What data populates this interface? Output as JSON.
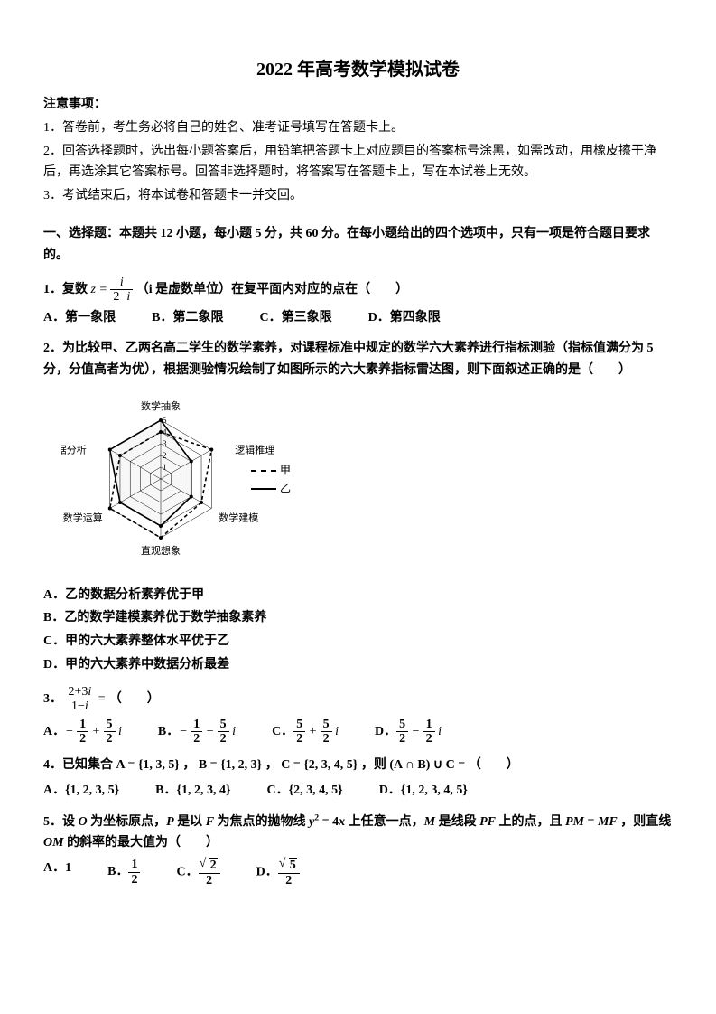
{
  "title": "2022 年高考数学模拟试卷",
  "instructions": {
    "head": "注意事项：",
    "items": [
      "1．答卷前，考生务必将自己的姓名、准考证号填写在答题卡上。",
      "2．回答选择题时，选出每小题答案后，用铅笔把答题卡上对应题目的答案标号涂黑，如需改动，用橡皮擦干净后，再选涂其它答案标号。回答非选择题时，将答案写在答题卡上，写在本试卷上无效。",
      "3．考试结束后，将本试卷和答题卡一并交回。"
    ]
  },
  "section1": "一、选择题：本题共 12 小题，每小题 5 分，共 60 分。在每小题给出的四个选项中，只有一项是符合题目要求的。",
  "q1": {
    "stem_pre": "1．复数 ",
    "stem_post": "（i 是虚数单位）在复平面内对应的点在（　　）",
    "A": "A．第一象限",
    "B": "B．第二象限",
    "C": "C．第三象限",
    "D": "D．第四象限"
  },
  "q2": {
    "stem": "2．为比较甲、乙两名高二学生的数学素养，对课程标准中规定的数学六大素养进行指标测验（指标值满分为 5 分，分值高者为优），根据测验情况绘制了如图所示的六大素养指标雷达图，则下面叙述正确的是（　　）",
    "A": "A．乙的数据分析素养优于甲",
    "B": "B．乙的数学建模素养优于数学抽象素养",
    "C": "C．甲的六大素养整体水平优于乙",
    "D": "D．甲的六大素养中数据分析最差",
    "radar": {
      "axes": [
        "数学抽象",
        "逻辑推理",
        "数学建模",
        "直观想象",
        "数学运算",
        "数据分析"
      ],
      "rings": [
        1,
        2,
        3,
        4,
        5
      ],
      "series": [
        {
          "name": "甲",
          "dash": true,
          "values": [
            4,
            5,
            4,
            5,
            5,
            4
          ]
        },
        {
          "name": "乙",
          "dash": false,
          "values": [
            5,
            3,
            3,
            4,
            4,
            5
          ]
        }
      ],
      "colors": {
        "line": "#000000",
        "grid": "#000000",
        "bg": "#ffffff"
      }
    }
  },
  "q3": {
    "stem_pre": "3．",
    "stem_post": "（　　）"
  },
  "q4": {
    "stem": "4．已知集合 A = {1, 3, 5} ， B = {1, 2, 3} ， C = {2, 3, 4, 5} ，则 (A ∩ B) ∪ C = （　　）",
    "A": "A．{1, 2, 3, 5}",
    "B": "B．{1, 2, 3, 4}",
    "C": "C．{2, 3, 4, 5}",
    "D": "D．{1, 2, 3, 4, 5}"
  },
  "q5": {
    "stem": "5．设 O 为坐标原点，P 是以 F 为焦点的抛物线 y² = 4x 上任意一点，M 是线段 PF 上的点，且 PM = MF ，则直线 OM 的斜率的最大值为（　　）",
    "A": "A．1"
  }
}
